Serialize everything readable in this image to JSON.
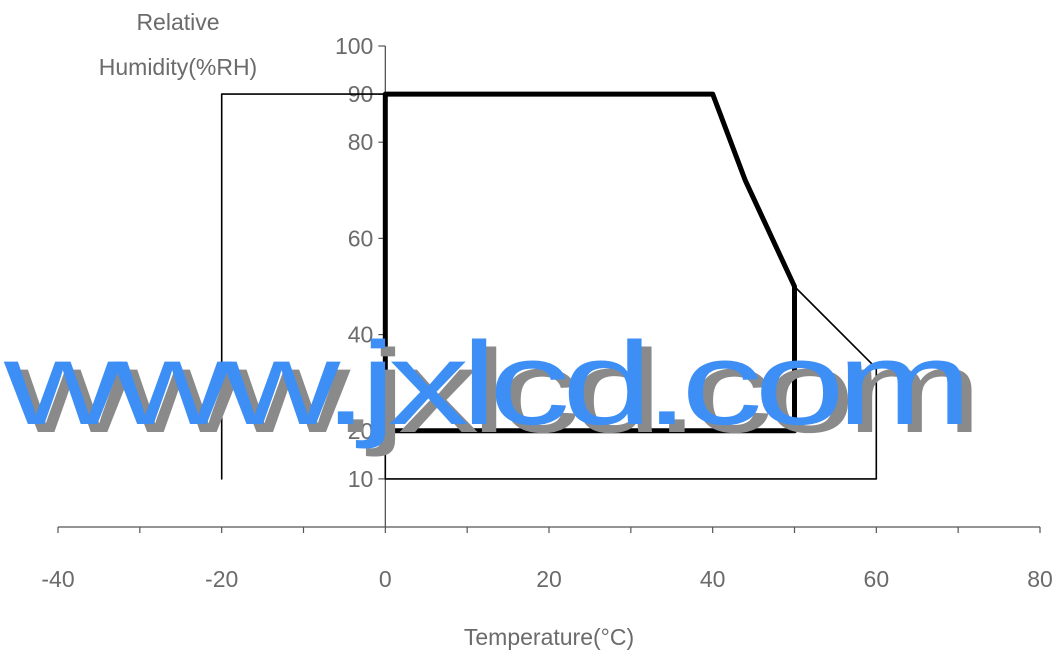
{
  "chart_data": {
    "type": "line",
    "title": "",
    "xlabel": "Temperature(°C)",
    "ylabel_lines": [
      "Relative",
      "Humidity(%RH)"
    ],
    "xlim": [
      -40,
      80
    ],
    "ylim": [
      0,
      100
    ],
    "x_ticks": [
      -40,
      -20,
      0,
      20,
      40,
      60,
      80
    ],
    "x_minor_step": 10,
    "y_ticks": [
      10,
      20,
      40,
      60,
      80,
      90,
      100
    ],
    "grid": false,
    "series": [
      {
        "role": "operating-range",
        "style": "thick",
        "points": [
          [
            0,
            20
          ],
          [
            0,
            90
          ],
          [
            40,
            90
          ],
          [
            44,
            72
          ],
          [
            50,
            50
          ],
          [
            50,
            20
          ],
          [
            0,
            20
          ]
        ]
      },
      {
        "role": "storage-range",
        "style": "thin",
        "points": [
          [
            -20,
            10
          ],
          [
            -20,
            90
          ],
          [
            0,
            90
          ],
          [
            0,
            10
          ],
          [
            60,
            10
          ],
          [
            60,
            33
          ],
          [
            50,
            50
          ]
        ]
      }
    ],
    "watermark": "www.jxlcd.com"
  },
  "colors": {
    "text": "#6b6b6b",
    "axis": "#555555",
    "line": "#000000",
    "watermark_shadow": "#8a8a8a",
    "watermark": "#3d8ff5"
  }
}
